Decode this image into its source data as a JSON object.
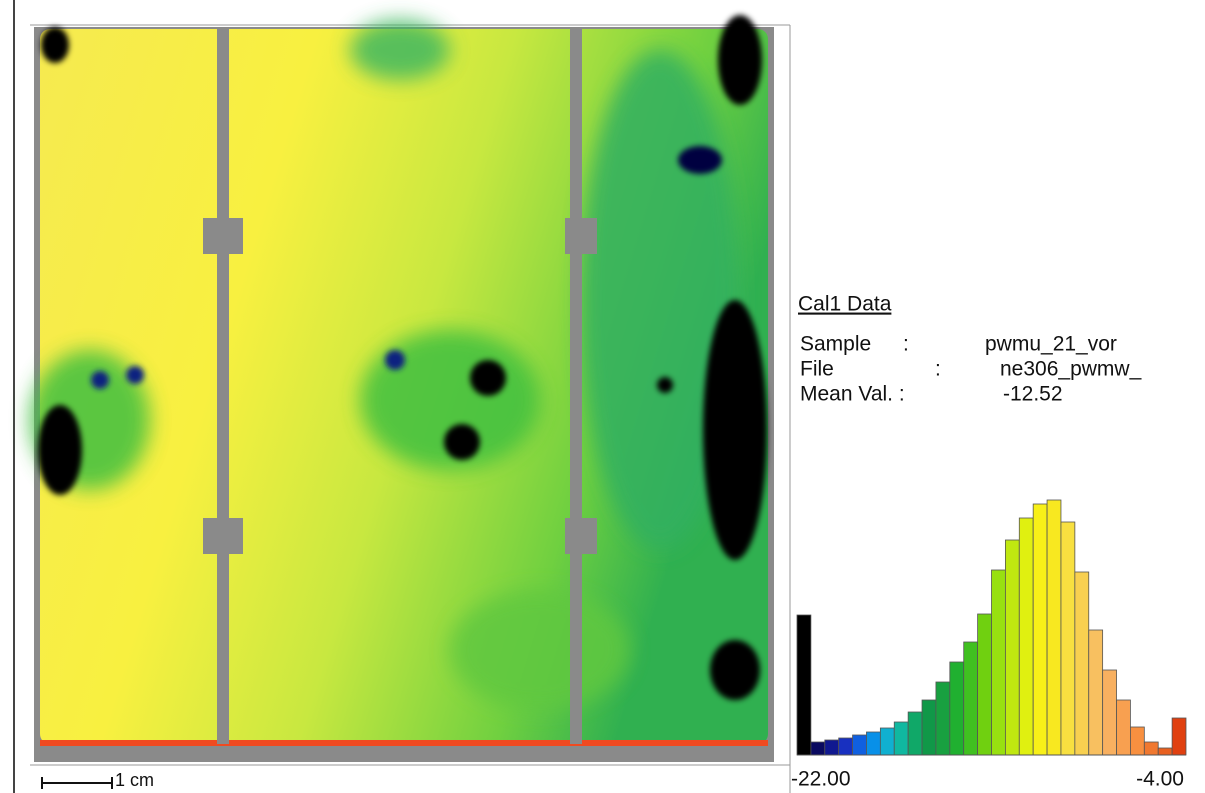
{
  "info": {
    "title": "Cal1 Data",
    "rows": [
      [
        "Sample",
        ":",
        "pwmu_21_vor"
      ],
      [
        "File",
        ":",
        "ne306_pwmw_"
      ],
      [
        "Mean Val. :",
        "-12.52"
      ]
    ]
  },
  "scale_bar": "1 cm",
  "histogram": {
    "type": "histogram",
    "xlim": [
      -22,
      -4
    ],
    "xticks": [
      {
        "value": -22,
        "label": "-22.00"
      },
      {
        "value": -4,
        "label": "-4.00"
      }
    ],
    "counts": [
      140,
      13,
      15,
      17,
      20,
      23,
      27,
      33,
      43,
      55,
      73,
      93,
      113,
      141,
      185,
      215,
      237,
      251,
      255,
      233,
      183,
      125,
      85,
      55,
      28,
      13,
      7,
      37
    ],
    "colors": [
      "#000000",
      "#0a0a60",
      "#101890",
      "#1830c0",
      "#1060e0",
      "#0890e8",
      "#10b0d0",
      "#10b8a0",
      "#10a868",
      "#109848",
      "#18a040",
      "#20b030",
      "#40c020",
      "#70d010",
      "#98e010",
      "#c0e810",
      "#e0f010",
      "#f8f018",
      "#f8e820",
      "#f8e040",
      "#f8d050",
      "#f8c060",
      "#f8b060",
      "#f8a050",
      "#f89040",
      "#f07830",
      "#e86020",
      "#e04010"
    ]
  }
}
